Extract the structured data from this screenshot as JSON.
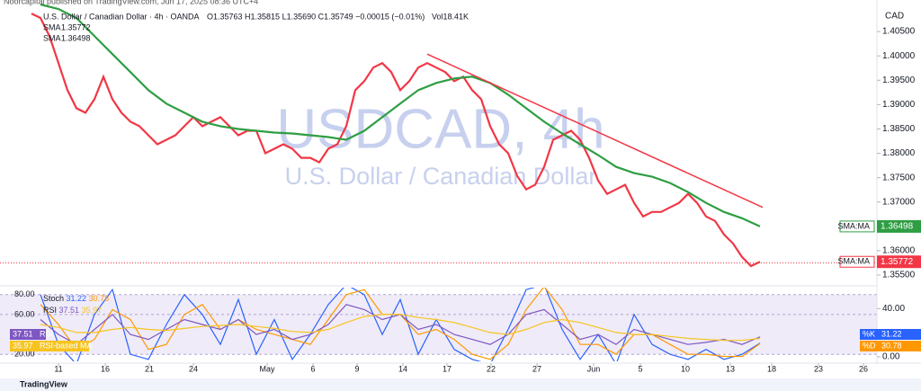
{
  "header": {
    "publisher": "Noorcapital published on TradingView.com, Jun 17, 2025 08:36 UTC+4",
    "symbol": "U.S. Dollar / Canadian Dollar · 4h · OANDA",
    "ohlc": "O1.35763  H1.35815  L1.35690  C1.35749  −0.00015 (−0.01%)",
    "volume": "Vol18.41K"
  },
  "footer": "TradingView",
  "chart_data": [
    {
      "type": "line",
      "title": "USDCAD, 4h",
      "subtitle": "U.S. Dollar / Canadian Dollar",
      "axis_label": "CAD",
      "xlim": [
        0,
        97.5
      ],
      "ylim": [
        1.35315,
        1.41148
      ],
      "grid": false,
      "last_price": 1.35749,
      "yticks": [
        {
          "value": 1.405,
          "label": "1.40500"
        },
        {
          "value": 1.4,
          "label": "1.40000"
        },
        {
          "value": 1.395,
          "label": "1.39500"
        },
        {
          "value": 1.39,
          "label": "1.39000"
        },
        {
          "value": 1.385,
          "label": "1.38500"
        },
        {
          "value": 1.38,
          "label": "1.38000"
        },
        {
          "value": 1.375,
          "label": "1.37500"
        },
        {
          "value": 1.37,
          "label": "1.37000"
        },
        {
          "value": 1.365,
          "label": "1.36500"
        },
        {
          "value": 1.36,
          "label": "1.36000"
        },
        {
          "value": 1.355,
          "label": "1.35500"
        }
      ],
      "xticks": [
        {
          "value": 6.5,
          "label": "11"
        },
        {
          "value": 11.7,
          "label": "16"
        },
        {
          "value": 16.6,
          "label": "21"
        },
        {
          "value": 21.5,
          "label": "24"
        },
        {
          "value": 29.7,
          "label": "May"
        },
        {
          "value": 34.8,
          "label": "6"
        },
        {
          "value": 39.7,
          "label": "9"
        },
        {
          "value": 44.8,
          "label": "14"
        },
        {
          "value": 49.7,
          "label": "17"
        },
        {
          "value": 54.6,
          "label": "22"
        },
        {
          "value": 59.7,
          "label": "27"
        },
        {
          "value": 66.0,
          "label": "Jun"
        },
        {
          "value": 71.2,
          "label": "5"
        },
        {
          "value": 76.2,
          "label": "10"
        },
        {
          "value": 81.2,
          "label": "13"
        },
        {
          "value": 85.8,
          "label": "18"
        },
        {
          "value": 91.0,
          "label": "23"
        },
        {
          "value": 96.0,
          "label": "26"
        }
      ],
      "series": [
        {
          "name": "SMA",
          "tag": "SMA:MA",
          "color": "#f23645",
          "x": [
            3.5,
            4.5,
            5.5,
            6.5,
            7.5,
            8.5,
            9.5,
            10.5,
            11.5,
            12.5,
            13.5,
            14.5,
            15.5,
            16.5,
            17.5,
            18.5,
            19.5,
            20.5,
            21.5,
            22.5,
            23.5,
            24.5,
            25.5,
            26.5,
            27.5,
            28.5,
            29.5,
            30.5,
            31.5,
            32.5,
            33.5,
            34.5,
            35.5,
            36.5,
            37.5,
            38.5,
            39.5,
            40.5,
            41.5,
            42.5,
            43.5,
            44.5,
            45.5,
            46.5,
            47.5,
            48.5,
            49.5,
            50.5,
            51.5,
            52.5,
            53.5,
            54.5,
            55.5,
            56.5,
            57.5,
            58.5,
            59.5,
            60.5,
            61.5,
            62.5,
            63.5,
            64.5,
            65.5,
            66.5,
            67.5,
            68.5,
            69.5,
            70.5,
            71.5,
            72.5,
            73.5,
            74.5,
            75.5,
            76.5,
            77.5,
            78.5,
            79.5,
            80.5,
            81.5,
            82.5,
            83.5,
            84.5
          ],
          "values": [
            1.4087,
            1.40778,
            1.40407,
            1.39852,
            1.39296,
            1.38926,
            1.38833,
            1.39111,
            1.39574,
            1.39111,
            1.38833,
            1.38648,
            1.38556,
            1.3837,
            1.38185,
            1.38278,
            1.3837,
            1.38556,
            1.38741,
            1.38556,
            1.38648,
            1.38741,
            1.38556,
            1.3837,
            1.38463,
            1.38463,
            1.38,
            1.38093,
            1.38185,
            1.38093,
            1.37907,
            1.37907,
            1.37815,
            1.38093,
            1.38185,
            1.38556,
            1.39296,
            1.39481,
            1.39759,
            1.39852,
            1.39667,
            1.39296,
            1.39481,
            1.39759,
            1.39852,
            1.39759,
            1.39667,
            1.39481,
            1.39574,
            1.39296,
            1.39111,
            1.38556,
            1.38185,
            1.38,
            1.37537,
            1.37259,
            1.37352,
            1.37722,
            1.38278,
            1.3837,
            1.38463,
            1.38278,
            1.37907,
            1.37444,
            1.37167,
            1.37259,
            1.37352,
            1.36981,
            1.36704,
            1.36796,
            1.36796,
            1.36889,
            1.36981,
            1.37167,
            1.36981,
            1.36704,
            1.36611,
            1.36333,
            1.36148,
            1.3587,
            1.35685,
            1.35772
          ]
        },
        {
          "name": "SMA",
          "tag": "SMA:MA",
          "color": "#2e9e43",
          "x": [
            4.5,
            6.5,
            8.5,
            10.5,
            12.5,
            14.5,
            16.5,
            18.5,
            20.5,
            22.5,
            24.5,
            26.5,
            28.5,
            30.5,
            32.5,
            34.5,
            36.5,
            38.5,
            40.5,
            42.5,
            44.5,
            46.5,
            48.5,
            50.5,
            52.5,
            54.5,
            56.5,
            58.5,
            60.5,
            62.5,
            64.5,
            66.5,
            68.5,
            70.5,
            72.5,
            74.5,
            76.5,
            78.5,
            80.5,
            82.5,
            84.5
          ],
          "values": [
            1.41056,
            1.40963,
            1.40778,
            1.40407,
            1.40037,
            1.39667,
            1.39296,
            1.39019,
            1.38833,
            1.38648,
            1.38556,
            1.385,
            1.38463,
            1.38426,
            1.38407,
            1.3837,
            1.38333,
            1.38278,
            1.38463,
            1.38741,
            1.39019,
            1.39296,
            1.39444,
            1.39537,
            1.39574,
            1.39444,
            1.39204,
            1.38926,
            1.38648,
            1.38407,
            1.38185,
            1.37963,
            1.37722,
            1.37593,
            1.37519,
            1.37389,
            1.37204,
            1.36981,
            1.36796,
            1.36667,
            1.36498
          ]
        }
      ],
      "trendline": {
        "color": "#f23645",
        "x": [
          47.5,
          84.8
        ],
        "y": [
          1.40037,
          1.36889
        ]
      }
    },
    {
      "type": "line",
      "indicators": [
        "Stoch",
        "RSI"
      ],
      "xlim": [
        0,
        97.5
      ],
      "ylim": [
        13,
        87
      ],
      "y2lim": [
        -3.8,
        57.4
      ],
      "yticks": [
        {
          "value": 80,
          "label": "80.00"
        },
        {
          "value": 60,
          "label": "60.00"
        },
        {
          "value": 20,
          "label": "20.00"
        }
      ],
      "y2ticks": [
        {
          "value": 40,
          "label": "40.00"
        },
        {
          "value": 0,
          "label": "0.00"
        }
      ],
      "series": [
        {
          "name": "%K",
          "group": 0,
          "color": "#2962ff",
          "x": [
            4.5,
            6.5,
            8.5,
            10.5,
            12.5,
            14.5,
            16.5,
            18.5,
            20.5,
            22.5,
            24.5,
            26.5,
            28.5,
            30.5,
            32.5,
            34.5,
            36.5,
            38.5,
            40.5,
            42.5,
            44.5,
            46.5,
            48.5,
            50.5,
            52.5,
            54.5,
            56.5,
            58.5,
            60.5,
            62.5,
            64.5,
            66.5,
            68.5,
            70.5,
            72.5,
            74.5,
            76.5,
            78.5,
            80.5,
            82.5,
            84.5
          ],
          "values": [
            80,
            30,
            10,
            60,
            85,
            20,
            15,
            50,
            80,
            60,
            30,
            75,
            20,
            55,
            15,
            40,
            70,
            90,
            80,
            40,
            75,
            20,
            55,
            25,
            15,
            10,
            45,
            85,
            90,
            45,
            15,
            40,
            10,
            60,
            30,
            20,
            15,
            25,
            15,
            20,
            31.22
          ]
        },
        {
          "name": "%D",
          "group": 0,
          "color": "#ff9800",
          "x": [
            4.5,
            6.5,
            8.5,
            10.5,
            12.5,
            14.5,
            16.5,
            18.5,
            20.5,
            22.5,
            24.5,
            26.5,
            28.5,
            30.5,
            32.5,
            34.5,
            36.5,
            38.5,
            40.5,
            42.5,
            44.5,
            46.5,
            48.5,
            50.5,
            52.5,
            54.5,
            56.5,
            58.5,
            60.5,
            62.5,
            64.5,
            66.5,
            68.5,
            70.5,
            72.5,
            74.5,
            76.5,
            78.5,
            80.5,
            82.5,
            84.5
          ],
          "values": [
            70,
            50,
            25,
            35,
            65,
            55,
            25,
            30,
            60,
            70,
            45,
            55,
            45,
            40,
            35,
            30,
            55,
            80,
            85,
            60,
            60,
            40,
            45,
            35,
            20,
            15,
            30,
            65,
            88,
            65,
            30,
            30,
            20,
            40,
            40,
            30,
            20,
            20,
            18,
            18,
            30.78
          ]
        },
        {
          "name": "RSI",
          "group": 1,
          "color": "#7e57c2",
          "x": [
            4.5,
            6.5,
            8.5,
            10.5,
            12.5,
            14.5,
            16.5,
            18.5,
            20.5,
            22.5,
            24.5,
            26.5,
            28.5,
            30.5,
            32.5,
            34.5,
            36.5,
            38.5,
            40.5,
            42.5,
            44.5,
            46.5,
            48.5,
            50.5,
            52.5,
            54.5,
            56.5,
            58.5,
            60.5,
            62.5,
            64.5,
            66.5,
            68.5,
            70.5,
            72.5,
            74.5,
            76.5,
            78.5,
            80.5,
            82.5,
            84.5
          ],
          "values": [
            55,
            40,
            30,
            45,
            60,
            40,
            35,
            45,
            55,
            50,
            45,
            55,
            40,
            45,
            35,
            40,
            50,
            70,
            65,
            55,
            60,
            45,
            50,
            40,
            35,
            30,
            40,
            60,
            65,
            50,
            35,
            40,
            30,
            45,
            40,
            35,
            30,
            32,
            35,
            30,
            37.51
          ]
        },
        {
          "name": "RSI-based MA",
          "group": 1,
          "color": "#f7c41f",
          "x": [
            4.5,
            6.5,
            8.5,
            10.5,
            12.5,
            14.5,
            16.5,
            18.5,
            20.5,
            22.5,
            24.5,
            26.5,
            28.5,
            30.5,
            32.5,
            34.5,
            36.5,
            38.5,
            40.5,
            42.5,
            44.5,
            46.5,
            48.5,
            50.5,
            52.5,
            54.5,
            56.5,
            58.5,
            60.5,
            62.5,
            64.5,
            66.5,
            68.5,
            70.5,
            72.5,
            74.5,
            76.5,
            78.5,
            80.5,
            82.5,
            84.5
          ],
          "values": [
            50,
            47,
            42,
            42,
            45,
            47,
            45,
            44,
            46,
            48,
            49,
            50,
            48,
            46,
            43,
            42,
            45,
            52,
            58,
            60,
            60,
            57,
            55,
            52,
            47,
            42,
            40,
            45,
            52,
            55,
            52,
            47,
            42,
            40,
            40,
            38,
            36,
            35,
            34,
            34,
            35.97
          ]
        }
      ]
    }
  ]
}
